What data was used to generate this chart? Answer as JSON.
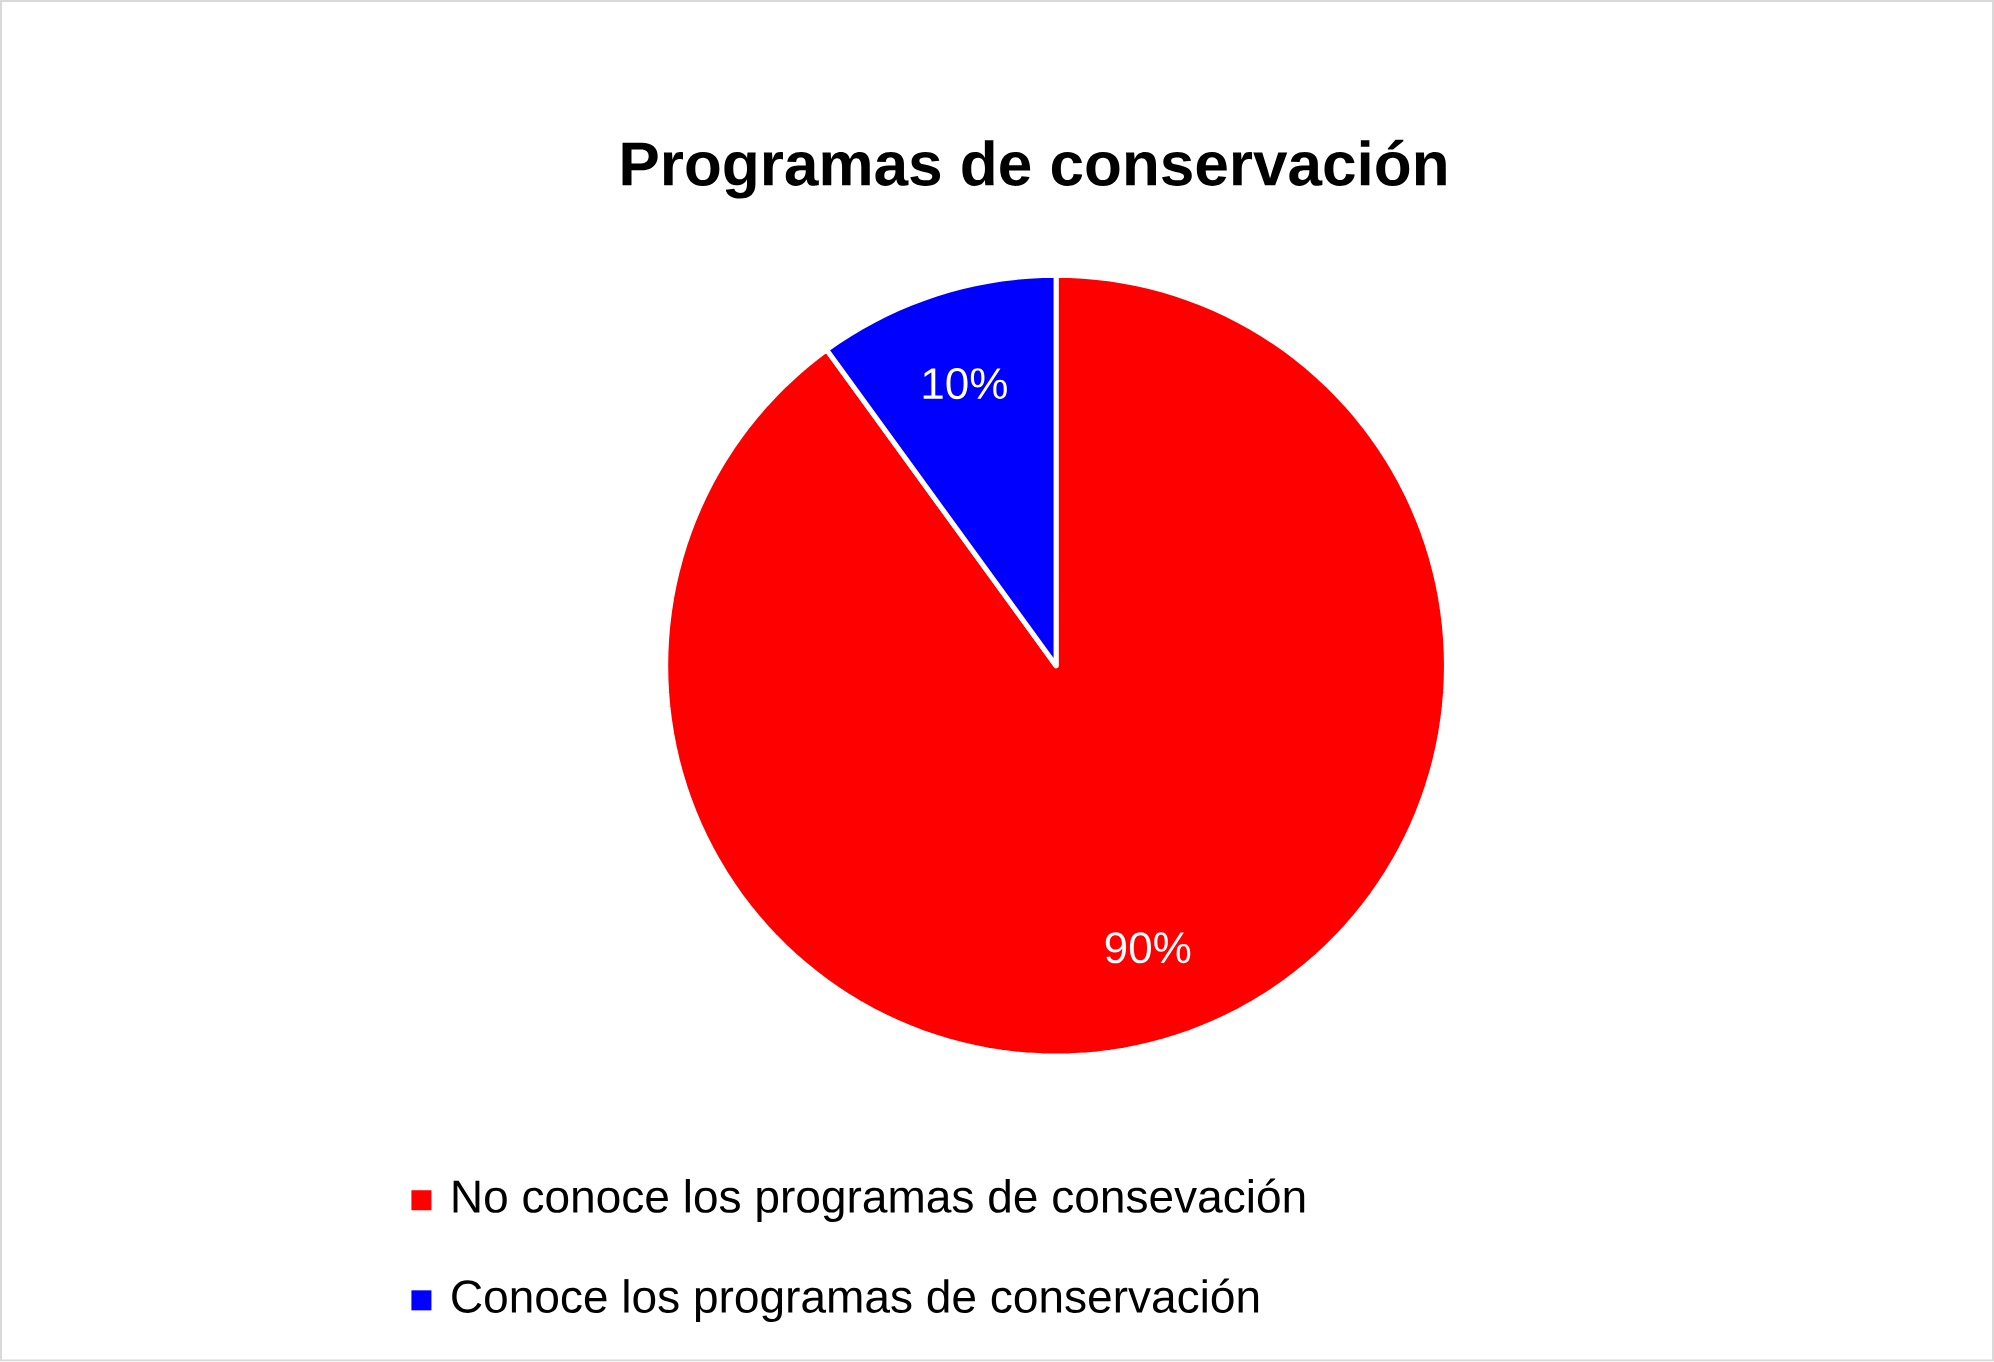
{
  "chart_data": {
    "type": "pie",
    "title": "Programas de conservación",
    "categories": [
      "No conoce los programas de consevación",
      "Conoce los programas de conservación"
    ],
    "values": [
      90,
      10
    ],
    "value_labels": [
      "90%",
      "10%"
    ],
    "colors": [
      "#ff0000",
      "#0000ff"
    ],
    "legend": "bottom"
  }
}
